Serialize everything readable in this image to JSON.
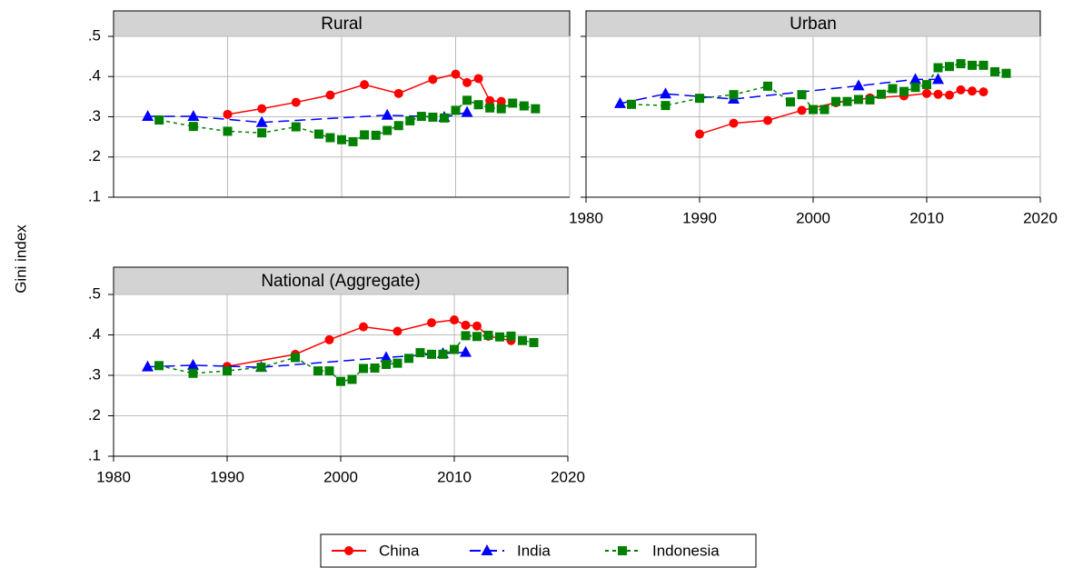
{
  "chart_data": [
    {
      "type": "line",
      "title": "Rural",
      "ylabel": "Gini index",
      "xlim": [
        1980,
        2020
      ],
      "xticks": [
        1980,
        1990,
        2000,
        2010,
        2020
      ],
      "xtick_labels": false,
      "ylim": [
        0.1,
        0.5
      ],
      "yticks": [
        {
          "value": 0.1,
          "label": ".1"
        },
        {
          "value": 0.2,
          "label": ".2"
        },
        {
          "value": 0.3,
          "label": ".3"
        },
        {
          "value": 0.4,
          "label": ".4"
        },
        {
          "value": 0.5,
          "label": ".5"
        }
      ],
      "ytick_labels": true,
      "grid": true,
      "series": [
        {
          "name": "China",
          "color": "#ff0000",
          "marker": "circle",
          "dash": "solid",
          "x": [
            1990,
            1993,
            1996,
            1999,
            2002,
            2005,
            2008,
            2010,
            2011,
            2012,
            2013,
            2014
          ],
          "values": [
            0.306,
            0.32,
            0.336,
            0.354,
            0.38,
            0.358,
            0.393,
            0.406,
            0.385,
            0.395,
            0.34,
            0.338
          ]
        },
        {
          "name": "India",
          "color": "#0000ff",
          "marker": "triangle",
          "dash": "long",
          "x": [
            1983,
            1987,
            1993,
            2004,
            2009,
            2011
          ],
          "values": [
            0.301,
            0.301,
            0.286,
            0.304,
            0.299,
            0.311
          ]
        },
        {
          "name": "Indonesia",
          "color": "#008000",
          "marker": "square",
          "dash": "short",
          "x": [
            1984,
            1987,
            1990,
            1993,
            1996,
            1998,
            1999,
            2000,
            2001,
            2002,
            2003,
            2004,
            2005,
            2006,
            2007,
            2008,
            2009,
            2010,
            2011,
            2012,
            2013,
            2014,
            2015,
            2016,
            2017
          ],
          "values": [
            0.292,
            0.276,
            0.264,
            0.26,
            0.275,
            0.257,
            0.248,
            0.243,
            0.238,
            0.255,
            0.254,
            0.266,
            0.278,
            0.29,
            0.301,
            0.299,
            0.297,
            0.316,
            0.341,
            0.33,
            0.322,
            0.32,
            0.334,
            0.327,
            0.32
          ]
        }
      ]
    },
    {
      "type": "line",
      "title": "Urban",
      "xlim": [
        1980,
        2020
      ],
      "xticks": [
        1980,
        1990,
        2000,
        2010,
        2020
      ],
      "xtick_labels": true,
      "ylim": [
        0.1,
        0.5
      ],
      "yticks": [
        {
          "value": 0.1,
          "label": ".1"
        },
        {
          "value": 0.2,
          "label": ".2"
        },
        {
          "value": 0.3,
          "label": ".3"
        },
        {
          "value": 0.4,
          "label": ".4"
        },
        {
          "value": 0.5,
          "label": ".5"
        }
      ],
      "ytick_labels": false,
      "grid": true,
      "series": [
        {
          "name": "China",
          "color": "#ff0000",
          "marker": "circle",
          "dash": "solid",
          "x": [
            1990,
            1993,
            1996,
            1999,
            2002,
            2005,
            2008,
            2010,
            2011,
            2012,
            2013,
            2014,
            2015
          ],
          "values": [
            0.257,
            0.284,
            0.291,
            0.316,
            0.335,
            0.347,
            0.352,
            0.358,
            0.356,
            0.354,
            0.367,
            0.364,
            0.362
          ]
        },
        {
          "name": "India",
          "color": "#0000ff",
          "marker": "triangle",
          "dash": "long",
          "x": [
            1983,
            1987,
            1993,
            2004,
            2009,
            2011
          ],
          "values": [
            0.333,
            0.357,
            0.344,
            0.377,
            0.393,
            0.393
          ]
        },
        {
          "name": "Indonesia",
          "color": "#008000",
          "marker": "square",
          "dash": "short",
          "x": [
            1984,
            1987,
            1990,
            1993,
            1996,
            1998,
            1999,
            2000,
            2001,
            2002,
            2003,
            2004,
            2005,
            2006,
            2007,
            2008,
            2009,
            2010,
            2011,
            2012,
            2013,
            2014,
            2015,
            2016,
            2017
          ],
          "values": [
            0.331,
            0.328,
            0.346,
            0.355,
            0.376,
            0.337,
            0.355,
            0.318,
            0.318,
            0.338,
            0.338,
            0.343,
            0.342,
            0.356,
            0.37,
            0.363,
            0.373,
            0.38,
            0.422,
            0.425,
            0.432,
            0.428,
            0.428,
            0.412,
            0.408
          ]
        }
      ]
    },
    {
      "type": "line",
      "title": "National (Aggregate)",
      "xlim": [
        1980,
        2020
      ],
      "xticks": [
        1980,
        1990,
        2000,
        2010,
        2020
      ],
      "xtick_labels": true,
      "ylim": [
        0.1,
        0.5
      ],
      "yticks": [
        {
          "value": 0.1,
          "label": ".1"
        },
        {
          "value": 0.2,
          "label": ".2"
        },
        {
          "value": 0.3,
          "label": ".3"
        },
        {
          "value": 0.4,
          "label": ".4"
        },
        {
          "value": 0.5,
          "label": ".5"
        }
      ],
      "ytick_labels": true,
      "grid": true,
      "series": [
        {
          "name": "China",
          "color": "#ff0000",
          "marker": "circle",
          "dash": "solid",
          "x": [
            1990,
            1996,
            1999,
            2002,
            2005,
            2008,
            2010,
            2011,
            2012,
            2013,
            2015
          ],
          "values": [
            0.322,
            0.352,
            0.388,
            0.42,
            0.409,
            0.43,
            0.437,
            0.424,
            0.422,
            0.397,
            0.386
          ]
        },
        {
          "name": "India",
          "color": "#0000ff",
          "marker": "triangle",
          "dash": "long",
          "x": [
            1983,
            1987,
            1993,
            2004,
            2009,
            2011
          ],
          "values": [
            0.321,
            0.325,
            0.32,
            0.344,
            0.354,
            0.357
          ]
        },
        {
          "name": "Indonesia",
          "color": "#008000",
          "marker": "square",
          "dash": "short",
          "x": [
            1984,
            1987,
            1990,
            1993,
            1996,
            1998,
            1999,
            2000,
            2001,
            2002,
            2003,
            2004,
            2005,
            2006,
            2007,
            2008,
            2009,
            2010,
            2011,
            2012,
            2013,
            2014,
            2015,
            2016,
            2017
          ],
          "values": [
            0.324,
            0.305,
            0.311,
            0.32,
            0.344,
            0.311,
            0.311,
            0.285,
            0.29,
            0.317,
            0.318,
            0.327,
            0.33,
            0.342,
            0.356,
            0.352,
            0.352,
            0.364,
            0.398,
            0.396,
            0.399,
            0.395,
            0.397,
            0.386,
            0.381
          ]
        }
      ]
    }
  ]
}
